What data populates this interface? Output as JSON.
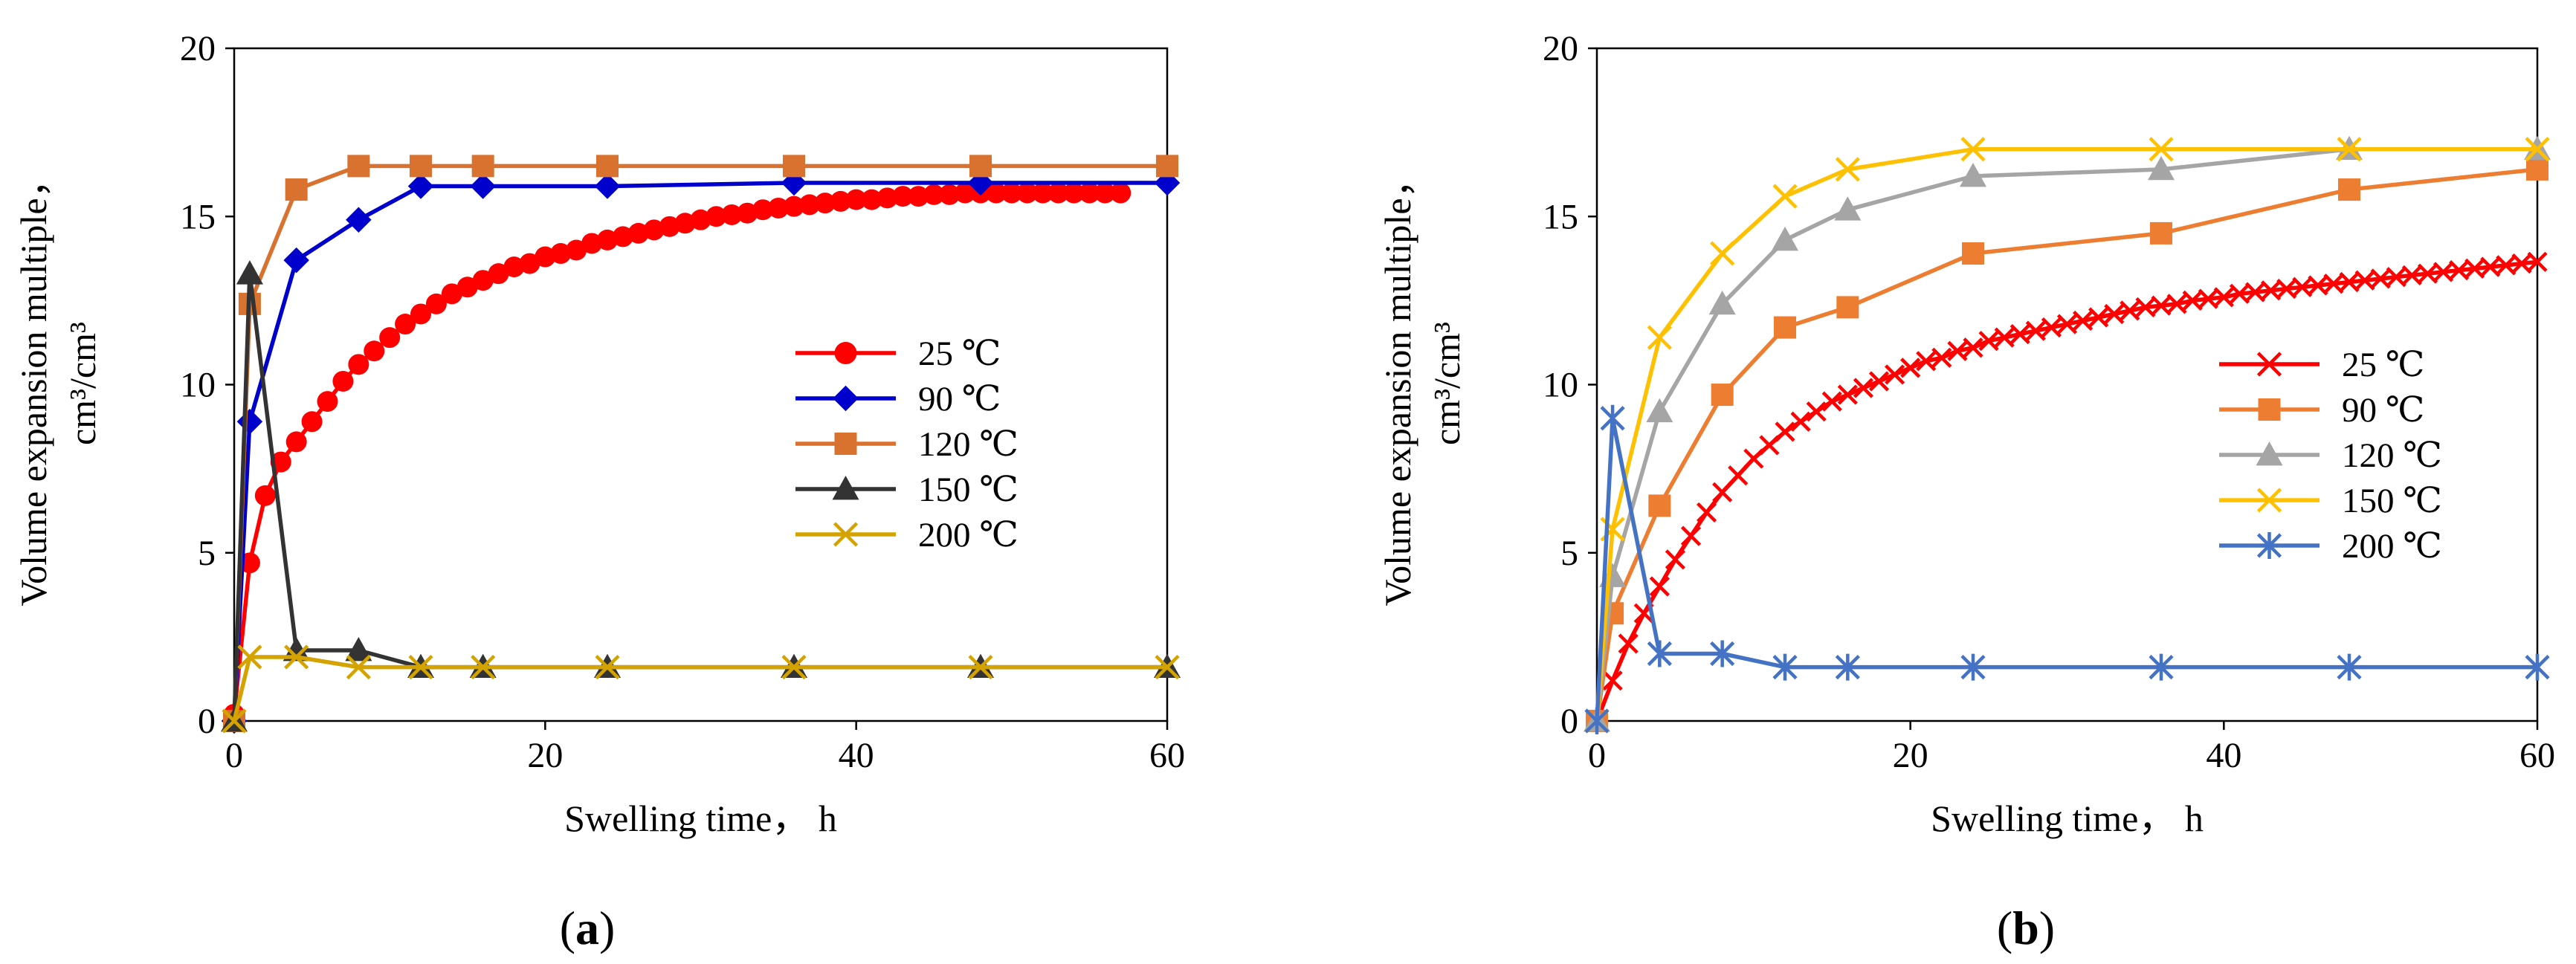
{
  "chart_data": [
    {
      "type": "line",
      "panel_label": "(a)",
      "xlabel": "Swelling time， h",
      "ylabel_line1": "Volume expansion multiple，",
      "ylabel_line2": "cm³/cm³",
      "xlim": [
        0,
        60
      ],
      "ylim": [
        0,
        20
      ],
      "xticks": [
        0,
        20,
        40,
        60
      ],
      "yticks": [
        0,
        5,
        10,
        15,
        20
      ],
      "xtick_labels": [
        "0",
        "20",
        "40",
        "60"
      ],
      "ytick_labels": [
        "0",
        "5",
        "10",
        "15",
        "20"
      ],
      "legend_position": "center-right",
      "series": [
        {
          "name": "25 ℃",
          "color": "#FF0000",
          "marker": "circle",
          "x": [
            0,
            1,
            2,
            3,
            4,
            5,
            6,
            7,
            8,
            9,
            10,
            11,
            12,
            13,
            14,
            15,
            16,
            17,
            18,
            19,
            20,
            21,
            22,
            23,
            24,
            25,
            26,
            27,
            28,
            29,
            30,
            31,
            32,
            33,
            34,
            35,
            36,
            37,
            38,
            39,
            40,
            41,
            42,
            43,
            44,
            45,
            46,
            47,
            48,
            49,
            50,
            51,
            52,
            53,
            54,
            55,
            56,
            57
          ],
          "y": [
            0.2,
            4.7,
            6.7,
            7.7,
            8.3,
            8.9,
            9.5,
            10.1,
            10.6,
            11.0,
            11.4,
            11.8,
            12.1,
            12.4,
            12.7,
            12.9,
            13.1,
            13.3,
            13.5,
            13.6,
            13.8,
            13.9,
            14.0,
            14.2,
            14.3,
            14.4,
            14.5,
            14.6,
            14.7,
            14.8,
            14.9,
            15.0,
            15.05,
            15.1,
            15.2,
            15.25,
            15.3,
            15.35,
            15.4,
            15.45,
            15.5,
            15.5,
            15.55,
            15.6,
            15.6,
            15.65,
            15.65,
            15.7,
            15.7,
            15.7,
            15.7,
            15.7,
            15.7,
            15.7,
            15.7,
            15.7,
            15.7,
            15.7
          ]
        },
        {
          "name": "90 ℃",
          "color": "#0000CC",
          "marker": "diamond",
          "x": [
            0,
            1,
            4,
            8,
            12,
            16,
            24,
            36,
            48,
            60
          ],
          "y": [
            0,
            8.9,
            13.7,
            14.9,
            15.9,
            15.9,
            15.9,
            16.0,
            16.0,
            16.0
          ]
        },
        {
          "name": "120 ℃",
          "color": "#D9722E",
          "marker": "square",
          "x": [
            0,
            1,
            4,
            8,
            12,
            16,
            24,
            36,
            48,
            60
          ],
          "y": [
            0,
            12.4,
            15.8,
            16.5,
            16.5,
            16.5,
            16.5,
            16.5,
            16.5,
            16.5
          ]
        },
        {
          "name": "150 ℃",
          "color": "#333333",
          "marker": "triangle",
          "x": [
            0,
            1,
            4,
            8,
            12,
            16,
            24,
            36,
            48,
            60
          ],
          "y": [
            0,
            13.3,
            2.1,
            2.1,
            1.6,
            1.6,
            1.6,
            1.6,
            1.6,
            1.6
          ]
        },
        {
          "name": "200 ℃",
          "color": "#D4A300",
          "marker": "x",
          "x": [
            0,
            1,
            4,
            8,
            12,
            16,
            24,
            36,
            48,
            60
          ],
          "y": [
            0,
            1.9,
            1.9,
            1.6,
            1.6,
            1.6,
            1.6,
            1.6,
            1.6,
            1.6
          ]
        }
      ]
    },
    {
      "type": "line",
      "panel_label": "(b)",
      "xlabel": "Swelling time， h",
      "ylabel_line1": "Volume expansion multiple，",
      "ylabel_line2": "cm³/cm³",
      "xlim": [
        0,
        60
      ],
      "ylim": [
        0,
        20
      ],
      "xticks": [
        0,
        20,
        40,
        60
      ],
      "yticks": [
        0,
        5,
        10,
        15,
        20
      ],
      "xtick_labels": [
        "0",
        "20",
        "40",
        "60"
      ],
      "ytick_labels": [
        "0",
        "5",
        "10",
        "15",
        "20"
      ],
      "legend_position": "center-right",
      "series": [
        {
          "name": "25 ℃",
          "color": "#FF0000",
          "marker": "x",
          "x": [
            0,
            1,
            2,
            3,
            4,
            5,
            6,
            7,
            8,
            9,
            10,
            11,
            12,
            13,
            14,
            15,
            16,
            17,
            18,
            19,
            20,
            21,
            22,
            23,
            24,
            25,
            26,
            27,
            28,
            29,
            30,
            31,
            32,
            33,
            34,
            35,
            36,
            37,
            38,
            39,
            40,
            41,
            42,
            43,
            44,
            45,
            46,
            47,
            48,
            49,
            50,
            51,
            52,
            53,
            54,
            55,
            56,
            57,
            58,
            59,
            60
          ],
          "y": [
            0,
            1.2,
            2.3,
            3.2,
            4.0,
            4.8,
            5.5,
            6.2,
            6.8,
            7.3,
            7.8,
            8.2,
            8.6,
            8.9,
            9.2,
            9.5,
            9.7,
            9.9,
            10.1,
            10.3,
            10.5,
            10.7,
            10.8,
            11.0,
            11.1,
            11.3,
            11.4,
            11.5,
            11.6,
            11.7,
            11.8,
            11.9,
            12.0,
            12.1,
            12.2,
            12.3,
            12.35,
            12.4,
            12.5,
            12.55,
            12.6,
            12.7,
            12.75,
            12.8,
            12.85,
            12.9,
            12.95,
            13.0,
            13.05,
            13.1,
            13.15,
            13.2,
            13.25,
            13.3,
            13.35,
            13.4,
            13.45,
            13.5,
            13.55,
            13.6,
            13.65
          ]
        },
        {
          "name": "90 ℃",
          "color": "#ED7D31",
          "marker": "square",
          "x": [
            0,
            1,
            4,
            8,
            12,
            16,
            24,
            36,
            48,
            60
          ],
          "y": [
            0,
            3.2,
            6.4,
            9.7,
            11.7,
            12.3,
            13.9,
            14.5,
            15.8,
            16.4
          ]
        },
        {
          "name": "120 ℃",
          "color": "#A5A5A5",
          "marker": "triangle",
          "x": [
            0,
            1,
            4,
            8,
            12,
            16,
            24,
            36,
            48,
            60
          ],
          "y": [
            0,
            4.3,
            9.2,
            12.4,
            14.3,
            15.2,
            16.2,
            16.4,
            17.0,
            17.0
          ]
        },
        {
          "name": "150 ℃",
          "color": "#FFC000",
          "marker": "x",
          "x": [
            0,
            1,
            4,
            8,
            12,
            16,
            24,
            36,
            48,
            60
          ],
          "y": [
            0,
            5.7,
            11.4,
            13.9,
            15.6,
            16.4,
            17.0,
            17.0,
            17.0,
            17.0
          ]
        },
        {
          "name": "200 ℃",
          "color": "#4472C4",
          "marker": "star",
          "x": [
            0,
            1,
            4,
            8,
            12,
            16,
            24,
            36,
            48,
            60
          ],
          "y": [
            0,
            9.0,
            2.0,
            2.0,
            1.6,
            1.6,
            1.6,
            1.6,
            1.6,
            1.6
          ]
        }
      ]
    }
  ]
}
